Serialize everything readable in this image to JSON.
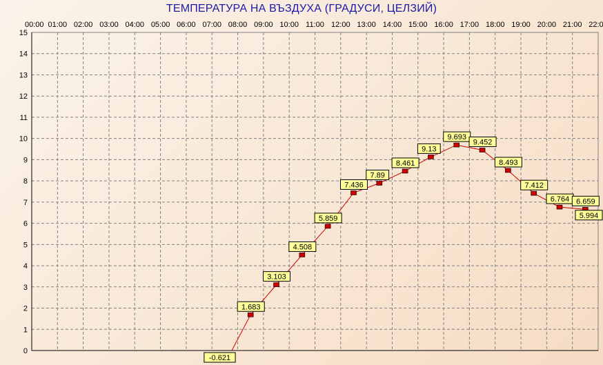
{
  "chart_data": {
    "type": "line",
    "title": "ТЕМПЕРАТУРА НА ВЪЗДУХА  (ГРАДУСИ, ЦЕЛЗИЙ)",
    "categories": [
      "00:00",
      "01:00",
      "02:00",
      "03:00",
      "04:00",
      "05:00",
      "06:00",
      "07:00",
      "08:00",
      "09:00",
      "10:00",
      "11:00",
      "12:00",
      "13:00",
      "14:00",
      "15:00",
      "16:00",
      "17:00",
      "18:00",
      "19:00",
      "20:00",
      "21:00",
      "22:00"
    ],
    "x_positions": [
      "07:30",
      "08:30",
      "09:30",
      "10:30",
      "11:30",
      "12:30",
      "13:30",
      "14:30",
      "15:30",
      "16:30",
      "17:30",
      "18:30",
      "19:30",
      "20:30",
      "21:30",
      "22:30"
    ],
    "values": [
      -0.621,
      1.683,
      3.103,
      4.508,
      5.859,
      7.436,
      7.89,
      8.461,
      9.13,
      9.693,
      9.452,
      8.493,
      7.412,
      6.764,
      6.659,
      5.994
    ],
    "labels": [
      "-0.621",
      "1.683",
      "3.103",
      "4.508",
      "5.859",
      "7.436",
      "7.89",
      "8.461",
      "9.13",
      "9.693",
      "9.452",
      "8.493",
      "7.412",
      "6.764",
      "6.659",
      "5.994"
    ],
    "y_ticks": [
      "0",
      "1",
      "2",
      "3",
      "4",
      "5",
      "6",
      "7",
      "8",
      "9",
      "10",
      "11",
      "12",
      "13",
      "14",
      "15"
    ],
    "ylim": [
      0,
      15
    ],
    "grid": true,
    "line_color": "#cc0000",
    "marker_color": "#cc0000",
    "label_bg": "#ffff99",
    "title_color": "#1a1aa8"
  }
}
